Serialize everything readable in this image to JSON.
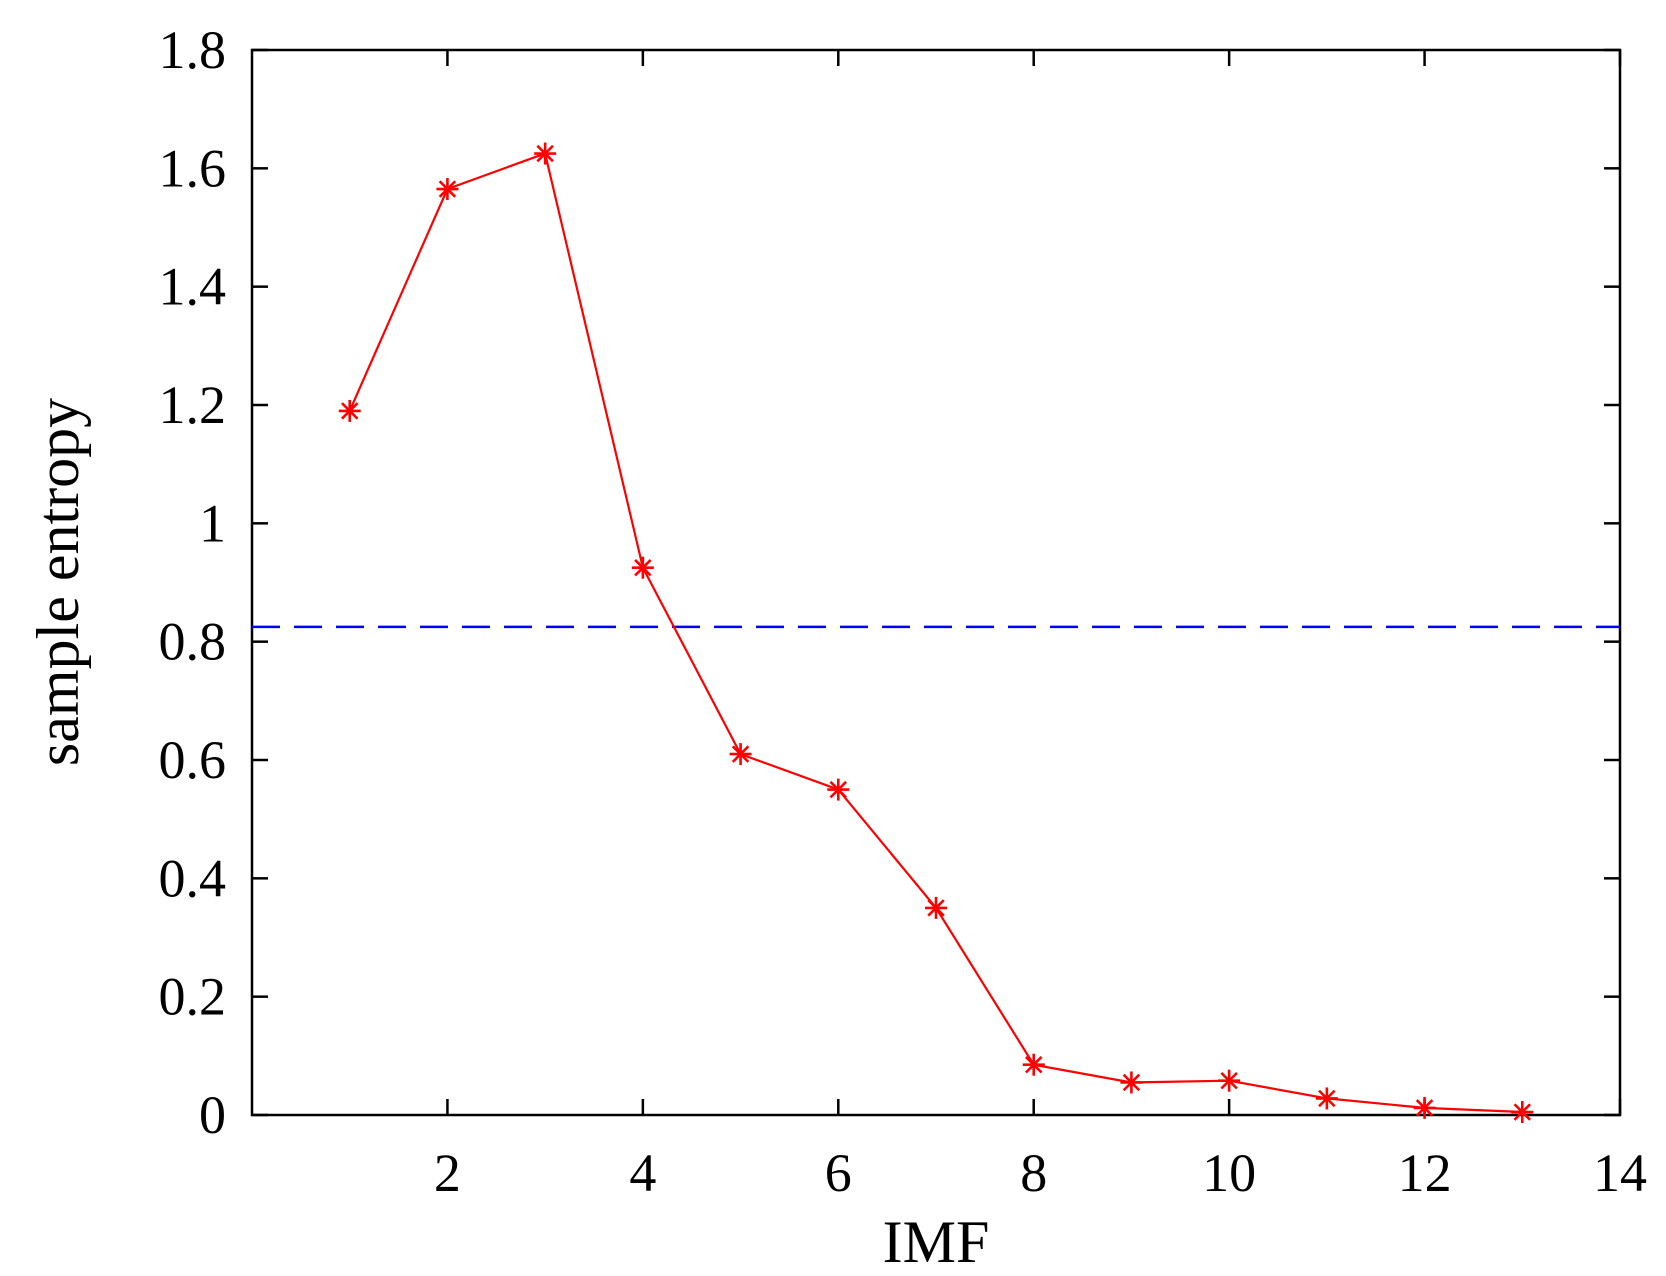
{
  "chart_data": {
    "type": "line",
    "title": "",
    "xlabel": "IMF",
    "ylabel": "sample entropy",
    "xlim": [
      0,
      14
    ],
    "ylim": [
      0,
      1.8
    ],
    "xticks": [
      2,
      4,
      6,
      8,
      10,
      12,
      14
    ],
    "yticks": [
      0,
      0.2,
      0.4,
      0.6,
      0.8,
      1,
      1.2,
      1.4,
      1.6,
      1.8
    ],
    "xtick_labels": [
      "2",
      "4",
      "6",
      "8",
      "10",
      "12",
      "14"
    ],
    "ytick_labels": [
      "0",
      "0.2",
      "0.4",
      "0.6",
      "0.8",
      "1",
      "1.2",
      "1.4",
      "1.6",
      "1.8"
    ],
    "grid": false,
    "legend": "none",
    "series": [
      {
        "color": "#ff0000",
        "marker": "asterisk",
        "x": [
          1,
          2,
          3,
          4,
          5,
          6,
          7,
          8,
          9,
          10,
          11,
          12,
          13
        ],
        "y": [
          1.19,
          1.565,
          1.625,
          0.925,
          0.61,
          0.55,
          0.35,
          0.085,
          0.055,
          0.058,
          0.028,
          0.012,
          0.005
        ]
      }
    ],
    "reference_lines": [
      {
        "orientation": "horizontal",
        "y": 0.825,
        "style": "dashed",
        "color": "#0000ff"
      }
    ]
  }
}
